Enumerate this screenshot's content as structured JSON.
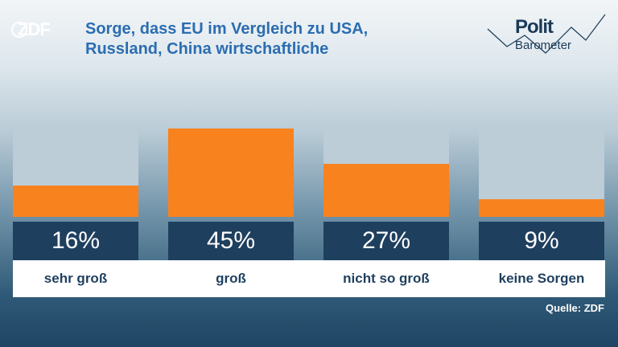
{
  "brand": {
    "logo_text": "ZDF"
  },
  "header": {
    "title_line1": "Sorge, dass EU im Vergleich zu USA,",
    "title_line2": "Russland, China wirtschaftliche",
    "badge_line1": "Polit",
    "badge_line2": "Barometer"
  },
  "chart_data": {
    "type": "bar",
    "title": "Sorge, dass EU im Vergleich zu USA, Russland, China wirtschaftliche",
    "categories": [
      "sehr groß",
      "groß",
      "nicht so groß",
      "keine Sorgen"
    ],
    "values": [
      16,
      45,
      27,
      9
    ],
    "value_labels": [
      "16%",
      "45%",
      "27%",
      "9%"
    ],
    "ylim": [
      0,
      45
    ],
    "colors": {
      "fill": "#f8821e",
      "track": "#bccdd7",
      "value_box": "#1f3f5f"
    }
  },
  "footer": {
    "source": "Quelle: ZDF"
  }
}
